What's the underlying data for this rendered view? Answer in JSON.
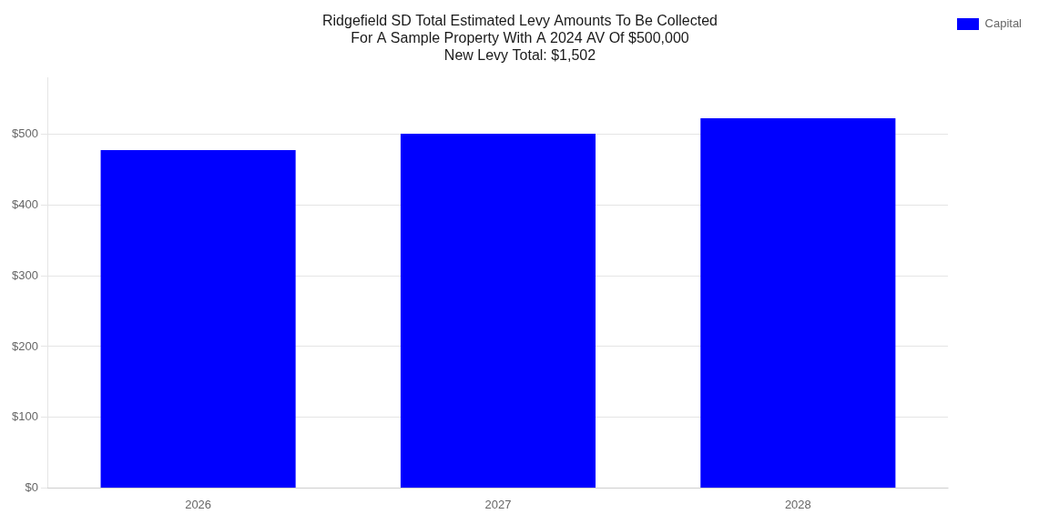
{
  "chart_data": {
    "type": "bar",
    "title": "Ridgefield SD Total Estimated Levy Amounts To Be Collected\nFor A Sample Property With A 2024 AV Of $500,000\nNew Levy Total: $1,502",
    "categories": [
      "2026",
      "2027",
      "2028"
    ],
    "series": [
      {
        "name": "Capital",
        "color": "#0000FF",
        "values": [
          478,
          501,
          523
        ]
      }
    ],
    "ylim": [
      0,
      580
    ],
    "yticks": [
      {
        "value": 0,
        "label": "$0"
      },
      {
        "value": 100,
        "label": "$100"
      },
      {
        "value": 200,
        "label": "$200"
      },
      {
        "value": 300,
        "label": "$300"
      },
      {
        "value": 400,
        "label": "$400"
      },
      {
        "value": 500,
        "label": "$500"
      }
    ],
    "grid": true,
    "legend": "right"
  }
}
